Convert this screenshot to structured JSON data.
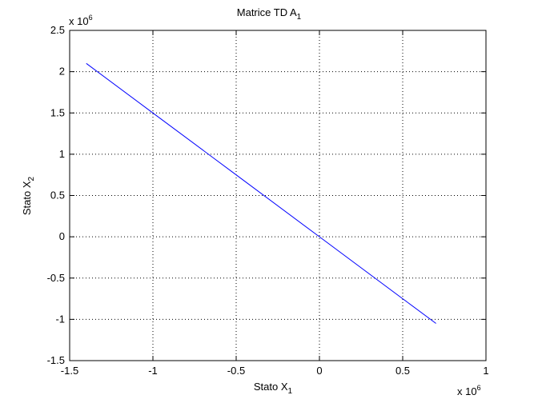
{
  "chart_data": {
    "type": "line",
    "title_main": "Matrice TD A",
    "title_sub": "1",
    "xlabel_main": "Stato X",
    "xlabel_sub": "1",
    "ylabel_main": "Stato X",
    "ylabel_sub": "2",
    "x_exponent_base": "x 10",
    "x_exponent_power": "6",
    "y_exponent_base": "x 10",
    "y_exponent_power": "6",
    "xlim": [
      -1.5,
      1
    ],
    "ylim": [
      -1.5,
      2.5
    ],
    "xticks": [
      -1.5,
      -1,
      -0.5,
      0,
      0.5,
      1
    ],
    "xtick_labels": [
      "-1.5",
      "-1",
      "-0.5",
      "0",
      "0.5",
      "1"
    ],
    "yticks": [
      -1.5,
      -1,
      -0.5,
      0,
      0.5,
      1,
      1.5,
      2,
      2.5
    ],
    "ytick_labels": [
      "-1.5",
      "-1",
      "-0.5",
      "0",
      "0.5",
      "1",
      "1.5",
      "2",
      "2.5"
    ],
    "grid": true,
    "series": [
      {
        "color": "#0000ff",
        "x": [
          -1.4,
          -1.0,
          -0.5,
          0.0,
          0.5,
          0.7
        ],
        "y": [
          2.1,
          1.5,
          0.75,
          0.0,
          -0.75,
          -1.05
        ]
      }
    ]
  }
}
